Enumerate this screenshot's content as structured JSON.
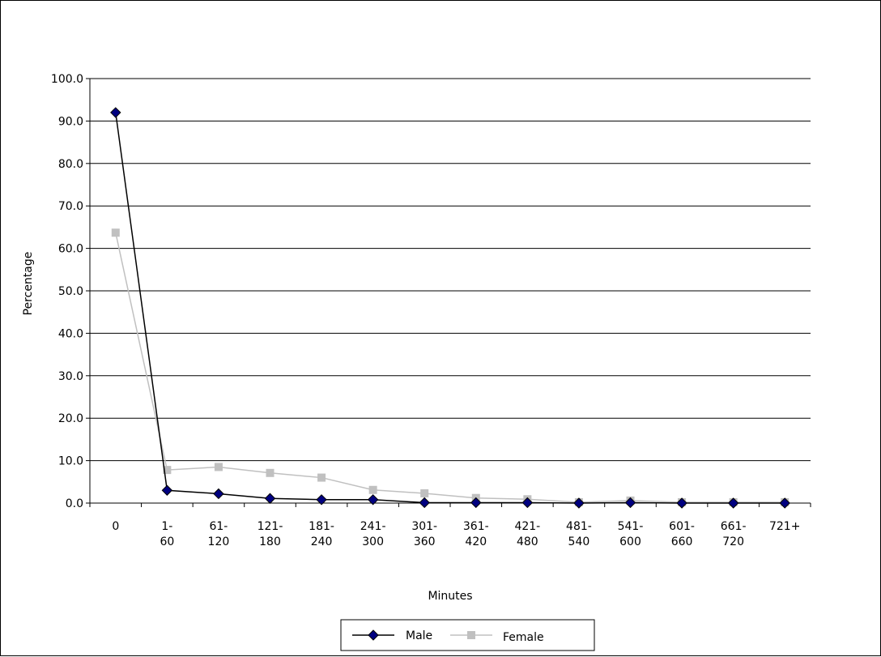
{
  "chart_data": {
    "type": "line",
    "title": "",
    "xlabel": "Minutes",
    "ylabel": "Percentage",
    "ylim": [
      0,
      100
    ],
    "ytick_step": 10,
    "ytick_labels": [
      "0.0",
      "10.0",
      "20.0",
      "30.0",
      "40.0",
      "50.0",
      "60.0",
      "70.0",
      "80.0",
      "90.0",
      "100.0"
    ],
    "grid": "horizontal",
    "legend_position": "bottom",
    "categories": [
      [
        "0"
      ],
      [
        "1-",
        "60"
      ],
      [
        "61-",
        "120"
      ],
      [
        "121-",
        "180"
      ],
      [
        "181-",
        "240"
      ],
      [
        "241-",
        "300"
      ],
      [
        "301-",
        "360"
      ],
      [
        "361-",
        "420"
      ],
      [
        "421-",
        "480"
      ],
      [
        "481-",
        "540"
      ],
      [
        "541-",
        "600"
      ],
      [
        "601-",
        "660"
      ],
      [
        "661-",
        "720"
      ],
      [
        "721+"
      ]
    ],
    "series": [
      {
        "name": "Male",
        "color": "#000080",
        "line_color": "#000000",
        "marker": "diamond",
        "values": [
          92.0,
          3.0,
          2.2,
          1.1,
          0.8,
          0.8,
          0.1,
          0.1,
          0.1,
          0.0,
          0.1,
          0.0,
          0.0,
          0.0
        ]
      },
      {
        "name": "Female",
        "color": "#c0c0c0",
        "line_color": "#c0c0c0",
        "marker": "square",
        "values": [
          63.7,
          7.8,
          8.5,
          7.1,
          6.0,
          3.1,
          2.3,
          1.2,
          0.9,
          0.2,
          0.6,
          0.2,
          0.2,
          0.2
        ]
      }
    ]
  }
}
